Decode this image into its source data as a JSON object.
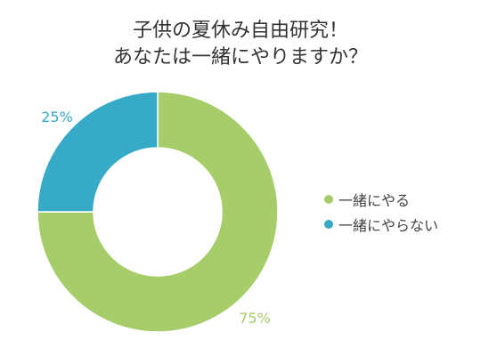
{
  "chart_data": {
    "type": "pie",
    "donut": true,
    "title": [
      "子供の夏休み自由研究！",
      "あなたは一緒にやりますか？"
    ],
    "slices": [
      {
        "label": "一緒にやる",
        "value": 75,
        "value_label": "75%",
        "color": "#a6cd6a"
      },
      {
        "label": "一緒にやらない",
        "value": 25,
        "value_label": "25%",
        "color": "#37aac8"
      }
    ],
    "legend_position": "right"
  }
}
